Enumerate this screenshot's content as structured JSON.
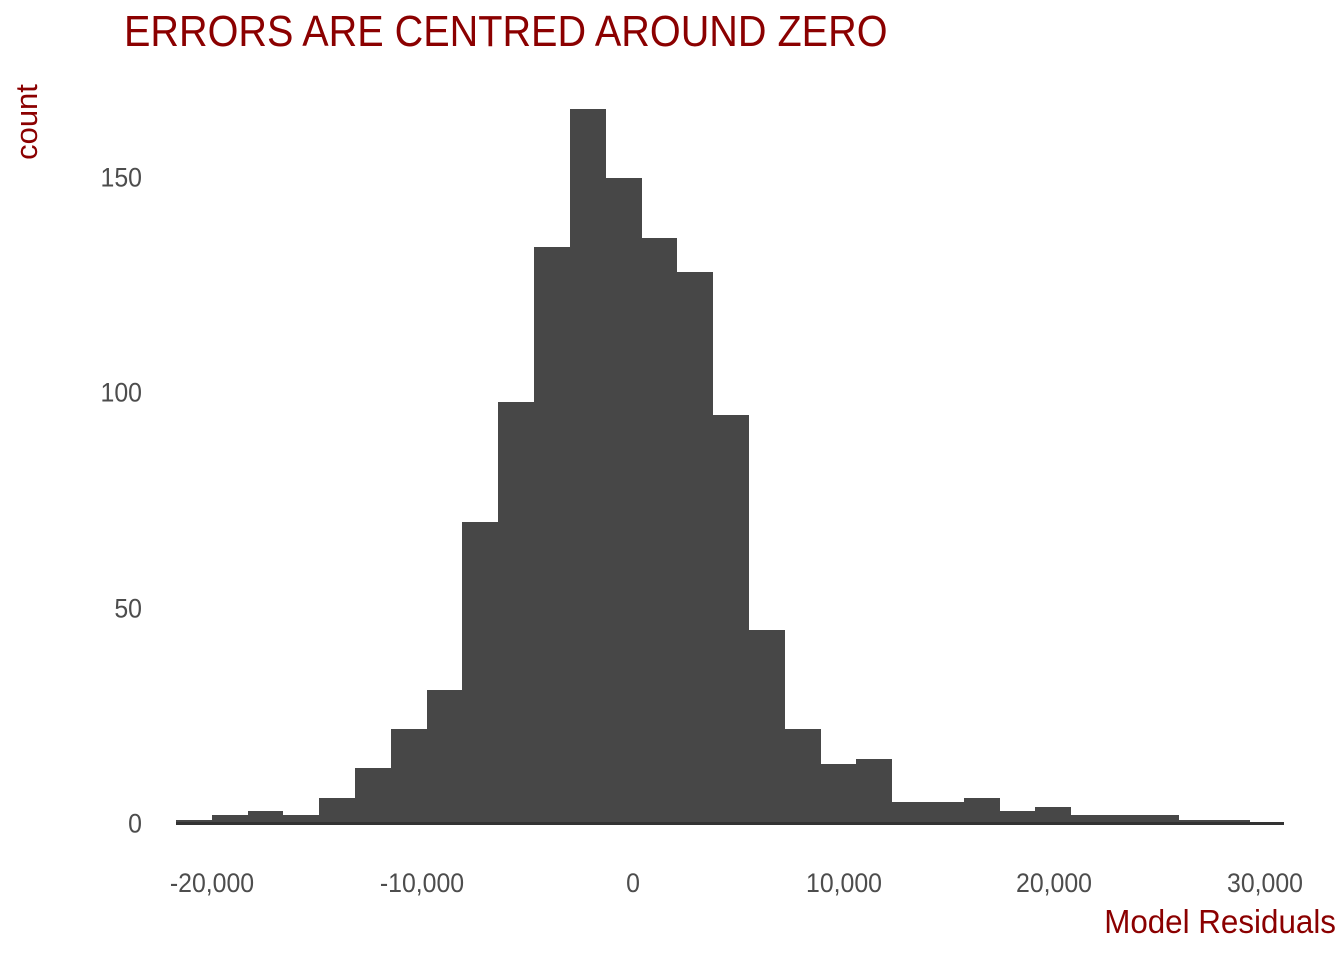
{
  "title": "ERRORS ARE CENTRED AROUND ZERO",
  "colors": {
    "title_text": "#8b0000",
    "axis_label_text": "#8b0000",
    "tick_label_text": "#4d4d4d",
    "bar_fill": "#474747",
    "axis_line": "#333333",
    "background": "#ffffff"
  },
  "chart_data": {
    "type": "bar",
    "subtype": "histogram",
    "title": "ERRORS ARE CENTRED AROUND ZERO",
    "xlabel": "Model Residuals",
    "ylabel": "count",
    "grid": false,
    "legend_position": "none",
    "bin_start": -21700,
    "bin_width": 1700,
    "counts": [
      1,
      2,
      3,
      2,
      6,
      13,
      22,
      31,
      70,
      98,
      134,
      166,
      150,
      136,
      128,
      95,
      45,
      22,
      14,
      15,
      5,
      5,
      6,
      3,
      4,
      2,
      2,
      2,
      1,
      1
    ],
    "xlim": [
      -21700,
      30900
    ],
    "ylim": [
      0,
      168
    ],
    "x_ticks": [
      {
        "value": -20000,
        "label": "-20,000"
      },
      {
        "value": -10000,
        "label": "-10,000"
      },
      {
        "value": 0,
        "label": "0"
      },
      {
        "value": 10000,
        "label": "10,000"
      },
      {
        "value": 20000,
        "label": "20,000"
      },
      {
        "value": 30000,
        "label": "30,000"
      }
    ],
    "y_ticks": [
      {
        "value": 0,
        "label": "0"
      },
      {
        "value": 50,
        "label": "50"
      },
      {
        "value": 100,
        "label": "100"
      },
      {
        "value": 150,
        "label": "150"
      }
    ]
  }
}
